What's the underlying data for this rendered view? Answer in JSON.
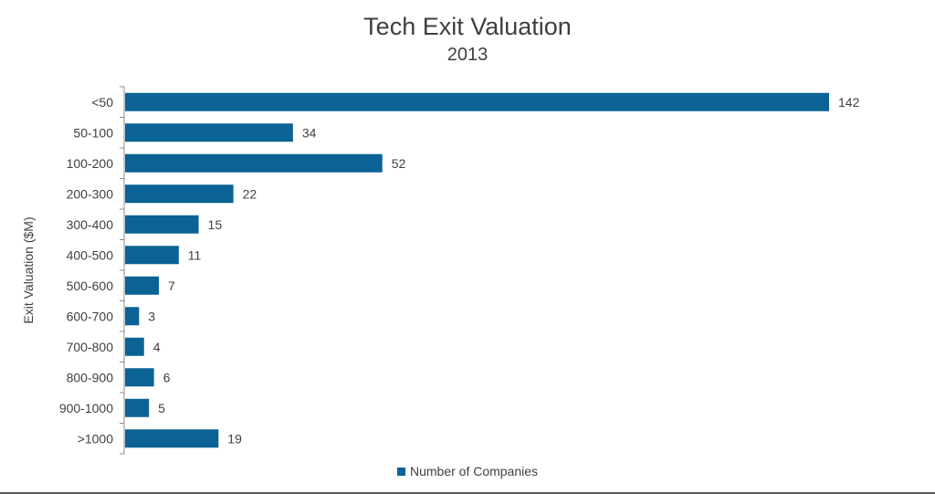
{
  "chart_data": {
    "type": "bar",
    "orientation": "horizontal",
    "title": "Tech Exit Valuation",
    "subtitle": "2013",
    "ylabel": "Exit Valuation ($M)",
    "xlabel": "",
    "categories": [
      "<50",
      "50-100",
      "100-200",
      "200-300",
      "300-400",
      "400-500",
      "500-600",
      "600-700",
      "700-800",
      "800-900",
      "900-1000",
      ">1000"
    ],
    "series": [
      {
        "name": "Number of Companies",
        "values": [
          142,
          34,
          52,
          22,
          15,
          11,
          7,
          3,
          4,
          6,
          5,
          19
        ],
        "color": "#0a6394"
      }
    ],
    "xlim": [
      0,
      142
    ],
    "grid": false,
    "data_labels": true,
    "legend": "bottom"
  }
}
